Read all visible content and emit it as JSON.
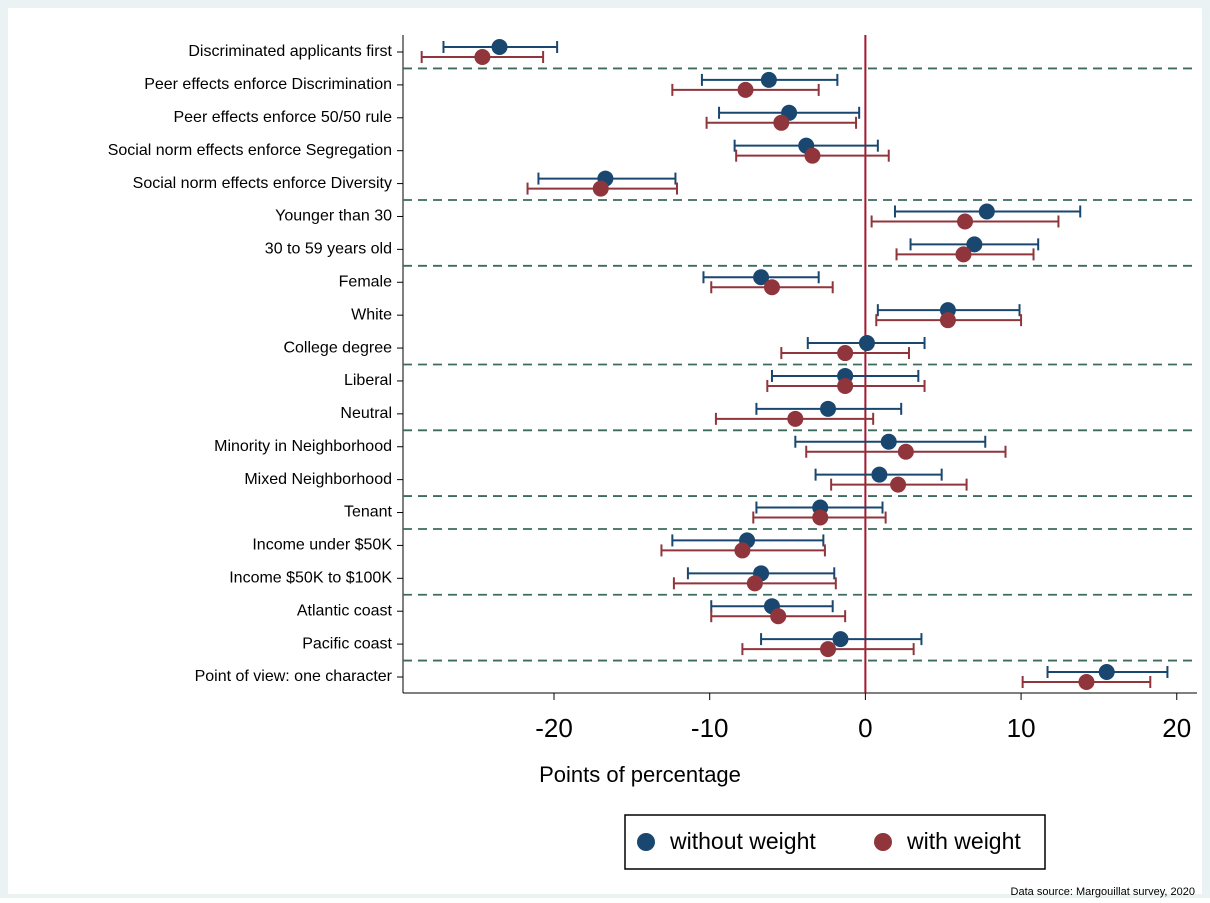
{
  "chart_data": {
    "type": "coefplot",
    "categories": [
      "Discriminated applicants first",
      "Peer effects enforce Discrimination",
      "Peer effects enforce 50/50 rule",
      "Social norm effects enforce Segregation",
      "Social norm effects enforce Diversity",
      "Younger than 30",
      "30 to 59 years old",
      "Female",
      "White",
      "College degree",
      "Liberal",
      "Neutral",
      "Minority in Neighborhood",
      "Mixed Neighborhood",
      "Tenant",
      "Income under $50K",
      "Income $50K to $100K",
      "Atlantic coast",
      "Pacific coast",
      "Point of view: one character"
    ],
    "series": [
      {
        "name": "without weight",
        "color": "#1a476f",
        "values": [
          -23.5,
          -6.2,
          -4.9,
          -3.8,
          -16.7,
          7.8,
          7.0,
          -6.7,
          5.3,
          0.1,
          -1.3,
          -2.4,
          1.5,
          0.9,
          -2.9,
          -7.6,
          -6.7,
          -6.0,
          -1.6,
          15.5
        ],
        "ci_low": [
          -27.1,
          -10.5,
          -9.4,
          -8.4,
          -21.0,
          1.9,
          2.9,
          -10.4,
          0.8,
          -3.7,
          -6.0,
          -7.0,
          -4.5,
          -3.2,
          -7.0,
          -12.4,
          -11.4,
          -9.9,
          -6.7,
          11.7
        ],
        "ci_high": [
          -19.8,
          -1.8,
          -0.4,
          0.8,
          -12.2,
          13.8,
          11.1,
          -3.0,
          9.9,
          3.8,
          3.4,
          2.3,
          7.7,
          4.9,
          1.1,
          -2.7,
          -2.0,
          -2.1,
          3.6,
          19.4
        ]
      },
      {
        "name": "with weight",
        "color": "#90353b",
        "values": [
          -24.6,
          -7.7,
          -5.4,
          -3.4,
          -17.0,
          6.4,
          6.3,
          -6.0,
          5.3,
          -1.3,
          -1.3,
          -4.5,
          2.6,
          2.1,
          -2.9,
          -7.9,
          -7.1,
          -5.6,
          -2.4,
          14.2
        ],
        "ci_low": [
          -28.5,
          -12.4,
          -10.2,
          -8.3,
          -21.7,
          0.4,
          2.0,
          -9.9,
          0.7,
          -5.4,
          -6.3,
          -9.6,
          -3.8,
          -2.2,
          -7.2,
          -13.1,
          -12.3,
          -9.9,
          -7.9,
          10.1
        ],
        "ci_high": [
          -20.7,
          -3.0,
          -0.6,
          1.5,
          -12.1,
          12.4,
          10.8,
          -2.1,
          10.0,
          2.8,
          3.8,
          0.5,
          9.0,
          6.5,
          1.3,
          -2.6,
          -1.9,
          -1.3,
          3.1,
          18.3
        ]
      }
    ],
    "xlim": [
      -29.7,
      21.3
    ],
    "xticks": [
      -20,
      -10,
      0,
      10,
      20
    ],
    "xlabel": "Points of percentage",
    "reference_line": 0,
    "reference_color": "#a3172f",
    "legend": "bottom",
    "source": "Data source: Margouillat survey, 2020"
  }
}
